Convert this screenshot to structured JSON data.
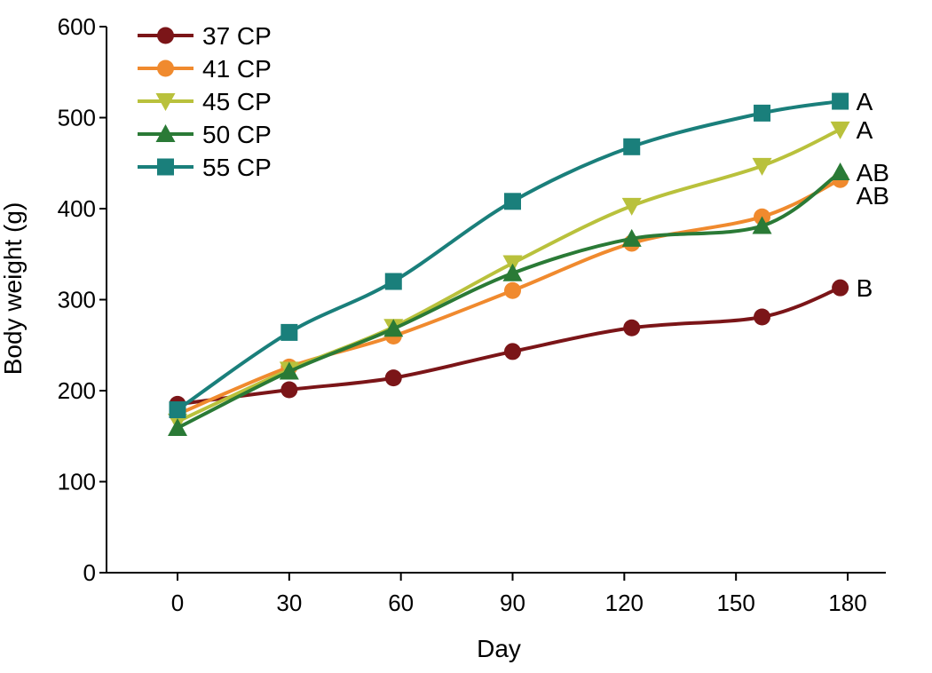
{
  "chart_data": {
    "type": "line",
    "title": "",
    "xlabel": "Day",
    "ylabel": "Body weight (g)",
    "xlim": [
      -12,
      192
    ],
    "ylim": [
      0,
      600
    ],
    "xticks": [
      0,
      30,
      60,
      90,
      120,
      150,
      180
    ],
    "yticks": [
      0,
      100,
      200,
      300,
      400,
      500,
      600
    ],
    "grid": false,
    "legend_position": "top-left",
    "series": [
      {
        "name": "37 CP",
        "color": "#7b1518",
        "marker": "circle",
        "end_label": "B",
        "x": [
          0,
          30,
          58,
          90,
          122,
          157,
          178
        ],
        "values": [
          185,
          201,
          214,
          243,
          269,
          281,
          313
        ]
      },
      {
        "name": "41 CP",
        "color": "#f08a2e",
        "marker": "circle",
        "end_label": "AB",
        "x": [
          0,
          30,
          58,
          90,
          122,
          157,
          178
        ],
        "values": [
          174,
          226,
          260,
          310,
          362,
          391,
          432
        ]
      },
      {
        "name": "45 CP",
        "color": "#b9c13c",
        "marker": "triangle-down",
        "end_label": "A",
        "x": [
          0,
          30,
          58,
          90,
          122,
          157,
          178
        ],
        "values": [
          166,
          223,
          270,
          340,
          403,
          447,
          487
        ]
      },
      {
        "name": "50 CP",
        "color": "#2a7a36",
        "marker": "triangle-up",
        "end_label": "AB",
        "x": [
          0,
          30,
          58,
          90,
          122,
          157,
          178
        ],
        "values": [
          159,
          221,
          268,
          329,
          367,
          381,
          440
        ]
      },
      {
        "name": "55 CP",
        "color": "#1a7f7b",
        "marker": "square",
        "end_label": "A",
        "x": [
          0,
          30,
          58,
          90,
          122,
          157,
          178
        ],
        "values": [
          179,
          264,
          320,
          408,
          468,
          505,
          518
        ]
      }
    ]
  }
}
